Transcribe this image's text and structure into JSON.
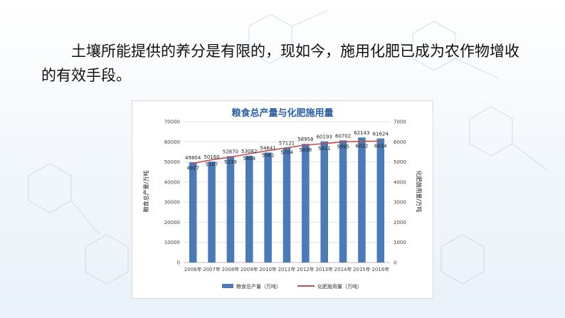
{
  "intro": {
    "text": "土壤所能提供的养分是有限的，现如今，施用化肥已成为农作物增收的有效手段。"
  },
  "colors": {
    "bar": "#4a7ab8",
    "line": "#c0504d",
    "title": "#2b5fa3"
  },
  "chart_data": {
    "type": "bar",
    "title": "粮食总产量与化肥施用量",
    "categories": [
      "2006年",
      "2007年",
      "2008年",
      "2009年",
      "2010年",
      "2011年",
      "2012年",
      "2013年",
      "2014年",
      "2015年",
      "2016年"
    ],
    "ylabel": "粮食总产量/万吨",
    "y2label": "化肥施用量/万吨",
    "ylim": [
      0,
      70000
    ],
    "y2lim": [
      0,
      7000
    ],
    "yticks": [
      "0",
      "10000",
      "20000",
      "30000",
      "40000",
      "50000",
      "60000",
      "70000"
    ],
    "y2ticks": [
      "0",
      "1000",
      "2000",
      "3000",
      "4000",
      "5000",
      "6000",
      "7000"
    ],
    "grid": true,
    "legend_position": "bottom",
    "series": [
      {
        "name": "粮食总产量（万吨）",
        "type": "bar",
        "axis": "left",
        "values": [
          49804,
          50160,
          52870,
          53082,
          54641,
          57121,
          58958,
          60193,
          60702,
          62143,
          61624
        ],
        "labels": [
          "49804",
          "50160",
          "52870",
          "53082",
          "54641",
          "57121",
          "58958",
          "60193",
          "60702",
          "62143",
          "61624"
        ]
      },
      {
        "name": "化肥施用量（万吨）",
        "type": "line",
        "axis": "right",
        "values": [
          4927,
          5107,
          5239,
          5404,
          5561,
          5704,
          5838,
          5911,
          5995,
          6022,
          6034
        ],
        "labels": [
          "4927",
          "5107",
          "5239",
          "5404",
          "5561",
          "5704",
          "5838",
          "5911",
          "5995",
          "6022",
          "6034"
        ]
      }
    ]
  }
}
